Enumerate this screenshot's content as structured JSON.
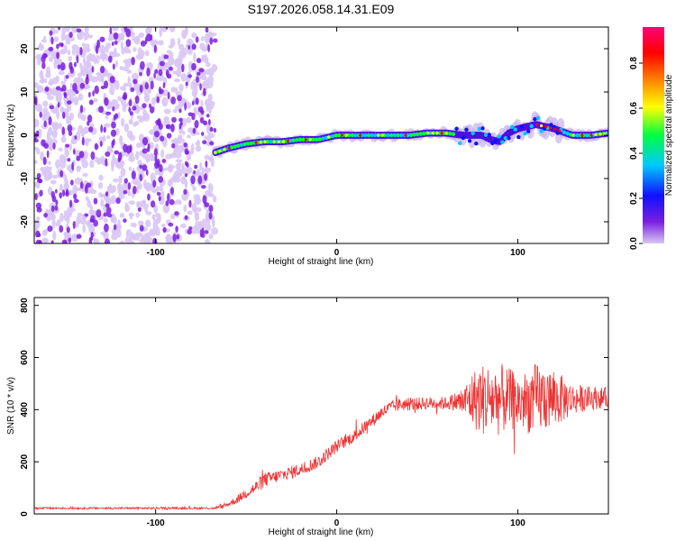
{
  "title": "S197.2026.058.14.31.E09",
  "colors": {
    "trace": "#ee3333",
    "speckle_dark": "#7a1fe0",
    "speckle_light": "#d9c7f5",
    "colormap": [
      "#d8c8f2",
      "#7a1fe0",
      "#1010ff",
      "#00c8ff",
      "#00ff40",
      "#ffff00",
      "#ff8800",
      "#ff0000",
      "#ff0077"
    ]
  },
  "chart_data": [
    {
      "type": "heatmap",
      "title": "S197.2026.058.14.31.E09",
      "xlabel": "Height of straight line (km)",
      "ylabel": "Frequency (Hz)",
      "xlim": [
        -167,
        150
      ],
      "ylim": [
        -25,
        25
      ],
      "xticks": [
        -100,
        0,
        100
      ],
      "yticks": [
        20,
        10,
        0,
        -10,
        -20
      ],
      "noise_region_x": [
        -167,
        -67
      ],
      "ridge_x": [
        -67,
        -60,
        -50,
        -40,
        -30,
        -20,
        -10,
        0,
        10,
        20,
        30,
        40,
        50,
        60,
        70,
        75,
        80,
        85,
        90,
        95,
        100,
        110,
        120,
        130,
        140,
        150
      ],
      "ridge_y": [
        -4,
        -3,
        -2,
        -1.5,
        -1.5,
        -1,
        -1,
        0,
        0,
        0,
        0,
        0,
        0.5,
        0.5,
        0,
        0,
        0,
        -1,
        -1.5,
        0.5,
        1.5,
        2.5,
        1.5,
        0,
        0,
        0.5
      ],
      "colorbar": {
        "label": "Normalized spectral amplitude",
        "ticks": [
          "0.0",
          "0.2",
          "0.4",
          "0.6",
          "0.8"
        ],
        "range": [
          0,
          0.96
        ]
      }
    },
    {
      "type": "line",
      "xlabel": "Height of straight line (km)",
      "ylabel": "SNR (10 * v/v)",
      "xlim": [
        -167,
        150
      ],
      "ylim": [
        0,
        830
      ],
      "xticks": [
        -100,
        0,
        100
      ],
      "yticks": [
        0,
        200,
        400,
        600,
        800
      ],
      "series": [
        {
          "name": "SNR",
          "color": "#ee3333",
          "x": [
            -167,
            -150,
            -120,
            -100,
            -80,
            -68,
            -62,
            -55,
            -50,
            -45,
            -40,
            -35,
            -30,
            -25,
            -20,
            -15,
            -10,
            -5,
            0,
            5,
            10,
            15,
            20,
            25,
            30,
            35,
            40,
            50,
            60,
            65,
            70,
            75,
            80,
            85,
            90,
            95,
            100,
            105,
            110,
            115,
            120,
            125,
            130,
            140,
            150
          ],
          "values": [
            22,
            22,
            22,
            22,
            22,
            22,
            30,
            55,
            80,
            100,
            130,
            140,
            150,
            160,
            170,
            185,
            200,
            230,
            260,
            280,
            300,
            330,
            360,
            390,
            410,
            420,
            420,
            425,
            425,
            430,
            430,
            440,
            440,
            440,
            440,
            440,
            430,
            430,
            440,
            445,
            440,
            440,
            440,
            445,
            445
          ],
          "noise_amplitude": [
            4,
            4,
            4,
            4,
            4,
            4,
            8,
            15,
            20,
            25,
            30,
            25,
            25,
            25,
            25,
            25,
            25,
            25,
            25,
            25,
            25,
            25,
            25,
            25,
            25,
            25,
            25,
            25,
            25,
            35,
            60,
            110,
            140,
            140,
            140,
            120,
            110,
            120,
            140,
            130,
            110,
            90,
            60,
            45,
            40
          ]
        }
      ]
    }
  ]
}
